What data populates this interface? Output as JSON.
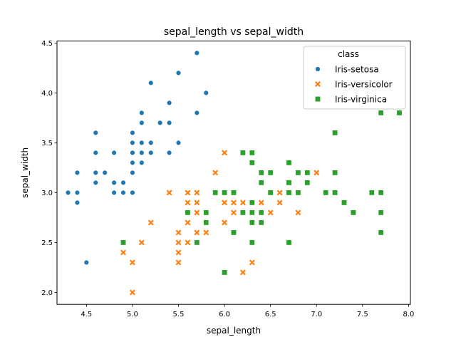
{
  "chart_data": {
    "type": "scatter",
    "title": "sepal_length vs sepal_width",
    "xlabel": "sepal_length",
    "ylabel": "sepal_width",
    "xlim": [
      4.18,
      8.02
    ],
    "ylim": [
      1.88,
      4.52
    ],
    "xticks": [
      "4.5",
      "5.0",
      "5.5",
      "6.0",
      "6.5",
      "7.0",
      "7.5",
      "8.0"
    ],
    "yticks": [
      "2.0",
      "2.5",
      "3.0",
      "3.5",
      "4.0",
      "4.5"
    ],
    "grid": false,
    "legend": {
      "title": "class",
      "placement": "top-right"
    },
    "series": [
      {
        "name": "Iris-setosa",
        "color": "#1f77b4",
        "marker": "circle",
        "points": [
          [
            4.3,
            3.0
          ],
          [
            4.4,
            2.9
          ],
          [
            4.4,
            3.0
          ],
          [
            4.4,
            3.2
          ],
          [
            4.5,
            2.3
          ],
          [
            4.6,
            3.1
          ],
          [
            4.6,
            3.2
          ],
          [
            4.6,
            3.4
          ],
          [
            4.6,
            3.6
          ],
          [
            4.7,
            3.2
          ],
          [
            4.8,
            3.0
          ],
          [
            4.8,
            3.1
          ],
          [
            4.8,
            3.4
          ],
          [
            4.9,
            3.0
          ],
          [
            4.9,
            3.1
          ],
          [
            5.0,
            3.0
          ],
          [
            5.0,
            3.2
          ],
          [
            5.0,
            3.3
          ],
          [
            5.0,
            3.4
          ],
          [
            5.0,
            3.5
          ],
          [
            5.0,
            3.6
          ],
          [
            5.1,
            3.3
          ],
          [
            5.1,
            3.4
          ],
          [
            5.1,
            3.5
          ],
          [
            5.1,
            3.7
          ],
          [
            5.1,
            3.8
          ],
          [
            5.2,
            3.4
          ],
          [
            5.2,
            3.5
          ],
          [
            5.2,
            4.1
          ],
          [
            5.3,
            3.7
          ],
          [
            5.4,
            3.4
          ],
          [
            5.4,
            3.7
          ],
          [
            5.4,
            3.9
          ],
          [
            5.5,
            3.5
          ],
          [
            5.5,
            4.2
          ],
          [
            5.7,
            3.8
          ],
          [
            5.7,
            4.4
          ],
          [
            5.8,
            4.0
          ]
        ]
      },
      {
        "name": "Iris-versicolor",
        "color": "#ff7f0e",
        "marker": "x",
        "points": [
          [
            4.9,
            2.4
          ],
          [
            5.0,
            2.0
          ],
          [
            5.0,
            2.3
          ],
          [
            5.1,
            2.5
          ],
          [
            5.2,
            2.7
          ],
          [
            5.4,
            3.0
          ],
          [
            5.5,
            2.3
          ],
          [
            5.5,
            2.4
          ],
          [
            5.5,
            2.5
          ],
          [
            5.5,
            2.6
          ],
          [
            5.6,
            2.5
          ],
          [
            5.6,
            2.7
          ],
          [
            5.6,
            2.9
          ],
          [
            5.6,
            3.0
          ],
          [
            5.7,
            2.6
          ],
          [
            5.7,
            2.8
          ],
          [
            5.7,
            2.9
          ],
          [
            5.7,
            3.0
          ],
          [
            5.8,
            2.6
          ],
          [
            5.8,
            2.7
          ],
          [
            5.9,
            3.0
          ],
          [
            5.9,
            3.2
          ],
          [
            6.0,
            2.2
          ],
          [
            6.0,
            2.7
          ],
          [
            6.0,
            2.9
          ],
          [
            6.0,
            3.4
          ],
          [
            6.1,
            2.8
          ],
          [
            6.1,
            2.9
          ],
          [
            6.1,
            3.0
          ],
          [
            6.2,
            2.2
          ],
          [
            6.2,
            2.9
          ],
          [
            6.3,
            2.3
          ],
          [
            6.3,
            2.5
          ],
          [
            6.3,
            3.3
          ],
          [
            6.4,
            2.9
          ],
          [
            6.4,
            3.2
          ],
          [
            6.5,
            2.8
          ],
          [
            6.6,
            2.9
          ],
          [
            6.6,
            3.0
          ],
          [
            6.7,
            3.0
          ],
          [
            6.7,
            3.1
          ],
          [
            6.8,
            2.8
          ],
          [
            6.9,
            3.1
          ],
          [
            7.0,
            3.2
          ]
        ]
      },
      {
        "name": "Iris-virginica",
        "color": "#2ca02c",
        "marker": "square",
        "points": [
          [
            4.9,
            2.5
          ],
          [
            5.6,
            2.8
          ],
          [
            5.7,
            2.5
          ],
          [
            5.8,
            2.7
          ],
          [
            5.8,
            2.8
          ],
          [
            5.9,
            3.0
          ],
          [
            6.0,
            2.2
          ],
          [
            6.0,
            3.0
          ],
          [
            6.1,
            2.6
          ],
          [
            6.1,
            3.0
          ],
          [
            6.2,
            2.8
          ],
          [
            6.2,
            3.4
          ],
          [
            6.3,
            2.5
          ],
          [
            6.3,
            2.7
          ],
          [
            6.3,
            2.8
          ],
          [
            6.3,
            2.9
          ],
          [
            6.3,
            3.3
          ],
          [
            6.3,
            3.4
          ],
          [
            6.4,
            2.7
          ],
          [
            6.4,
            2.8
          ],
          [
            6.4,
            3.1
          ],
          [
            6.4,
            3.2
          ],
          [
            6.5,
            3.0
          ],
          [
            6.5,
            3.2
          ],
          [
            6.7,
            2.5
          ],
          [
            6.7,
            3.0
          ],
          [
            6.7,
            3.1
          ],
          [
            6.7,
            3.3
          ],
          [
            6.8,
            3.0
          ],
          [
            6.8,
            3.2
          ],
          [
            6.9,
            3.1
          ],
          [
            6.9,
            3.2
          ],
          [
            7.1,
            3.0
          ],
          [
            7.2,
            3.0
          ],
          [
            7.2,
            3.2
          ],
          [
            7.2,
            3.6
          ],
          [
            7.3,
            2.9
          ],
          [
            7.4,
            2.8
          ],
          [
            7.6,
            3.0
          ],
          [
            7.7,
            2.6
          ],
          [
            7.7,
            2.8
          ],
          [
            7.7,
            3.0
          ],
          [
            7.7,
            3.8
          ],
          [
            7.9,
            3.8
          ]
        ]
      }
    ]
  }
}
